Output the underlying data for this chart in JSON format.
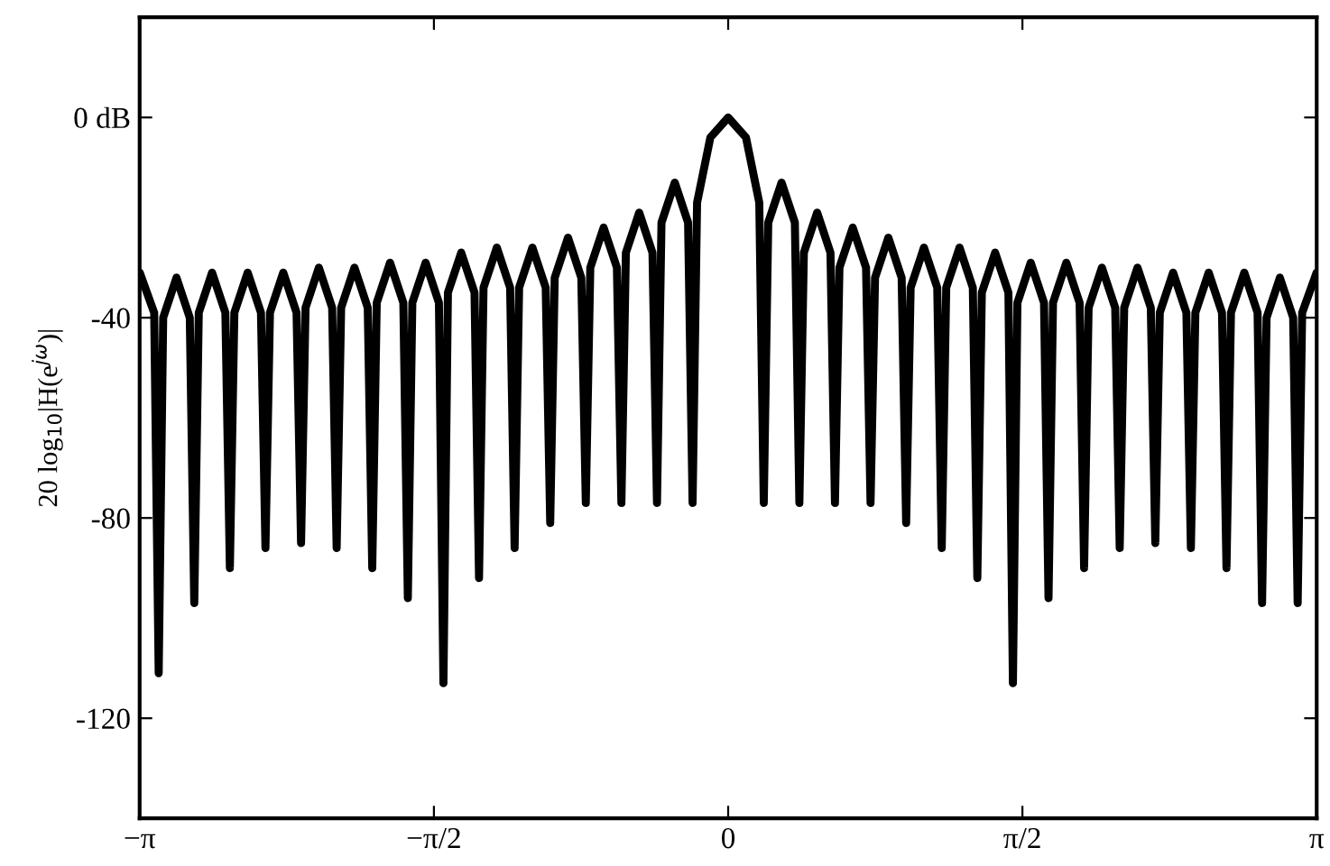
{
  "chart_data": {
    "type": "line",
    "ylabel": "20 log$_{10}$|H(e$^{jω}$)|",
    "xlim": [
      -3.1416,
      3.1416
    ],
    "ylim": [
      -140,
      20
    ],
    "xticks": [
      {
        "value": -3.1416,
        "label": "−π"
      },
      {
        "value": -1.5708,
        "label": "−π/2"
      },
      0,
      {
        "value": 1.5708,
        "label": "π/2"
      },
      {
        "value": 3.1416,
        "label": "π"
      }
    ],
    "yticks": [
      {
        "value": 0,
        "label": "0 dB"
      },
      -40,
      -80,
      -120
    ],
    "grid": false,
    "line_style": "solid",
    "series": [
      {
        "color": "#000000",
        "x": [
          -3.141,
          -3.064,
          -3.04,
          -3.016,
          -2.945,
          -2.874,
          -2.85,
          -2.826,
          -2.755,
          -2.684,
          -2.66,
          -2.636,
          -2.565,
          -2.494,
          -2.47,
          -2.446,
          -2.375,
          -2.304,
          -2.28,
          -2.256,
          -2.185,
          -2.114,
          -2.09,
          -2.066,
          -1.995,
          -1.924,
          -1.9,
          -1.876,
          -1.805,
          -1.734,
          -1.71,
          -1.686,
          -1.615,
          -1.544,
          -1.52,
          -1.496,
          -1.425,
          -1.354,
          -1.33,
          -1.306,
          -1.235,
          -1.164,
          -1.14,
          -1.116,
          -1.045,
          -0.974,
          -0.95,
          -0.926,
          -0.855,
          -0.784,
          -0.76,
          -0.736,
          -0.665,
          -0.594,
          -0.57,
          -0.546,
          -0.475,
          -0.404,
          -0.38,
          -0.356,
          -0.285,
          -0.214,
          -0.19,
          -0.166,
          -0.095,
          0,
          0.095,
          0.166,
          0.19,
          0.214,
          0.285,
          0.356,
          0.38,
          0.404,
          0.475,
          0.546,
          0.57,
          0.594,
          0.665,
          0.736,
          0.76,
          0.784,
          0.855,
          0.926,
          0.95,
          0.974,
          1.045,
          1.116,
          1.14,
          1.164,
          1.235,
          1.306,
          1.33,
          1.354,
          1.425,
          1.496,
          1.52,
          1.544,
          1.615,
          1.686,
          1.71,
          1.734,
          1.805,
          1.876,
          1.9,
          1.924,
          1.995,
          2.066,
          2.09,
          2.114,
          2.185,
          2.256,
          2.28,
          2.304,
          2.375,
          2.446,
          2.47,
          2.494,
          2.565,
          2.636,
          2.66,
          2.684,
          2.755,
          2.826,
          2.85,
          2.874,
          2.945,
          3.016,
          3.04,
          3.064,
          3.141
        ],
        "values": [
          -31,
          -39,
          -111,
          -40,
          -32,
          -40,
          -97,
          -39,
          -31,
          -39,
          -90,
          -39,
          -31,
          -39,
          -86,
          -39,
          -31,
          -39,
          -85,
          -38,
          -30,
          -38,
          -86,
          -38,
          -30,
          -38,
          -90,
          -37,
          -29,
          -37,
          -96,
          -37,
          -29,
          -37,
          -113,
          -35,
          -27,
          -35,
          -92,
          -34,
          -26,
          -34,
          -86,
          -34,
          -26,
          -34,
          -81,
          -32,
          -24,
          -32,
          -77,
          -30,
          -22,
          -30,
          -77,
          -27,
          -19,
          -27,
          -77,
          -21,
          -13,
          -21,
          -77,
          -17,
          -4,
          0,
          -4,
          -17,
          -77,
          -21,
          -13,
          -21,
          -77,
          -27,
          -19,
          -27,
          -77,
          -30,
          -22,
          -30,
          -77,
          -32,
          -24,
          -32,
          -81,
          -34,
          -26,
          -34,
          -86,
          -34,
          -26,
          -34,
          -92,
          -35,
          -27,
          -35,
          -113,
          -37,
          -29,
          -37,
          -96,
          -37,
          -29,
          -37,
          -90,
          -38,
          -30,
          -38,
          -86,
          -38,
          -30,
          -38,
          -85,
          -39,
          -31,
          -39,
          -86,
          -39,
          -31,
          -39,
          -90,
          -39,
          -31,
          -39,
          -97,
          -40,
          -32,
          -40,
          -97,
          -39,
          -31
        ]
      }
    ]
  }
}
